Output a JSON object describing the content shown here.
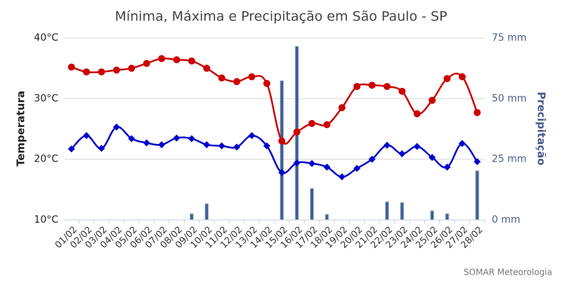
{
  "chart_data": {
    "type": "combo",
    "title": "Mínima, Máxima e Precipitação em São Paulo - SP",
    "y_label": "Temperatura",
    "y2_label": "Precipitação",
    "credit": "SOMAR Meteorologia",
    "categories": [
      "01/02",
      "02/02",
      "03/02",
      "04/02",
      "05/02",
      "06/02",
      "07/02",
      "08/02",
      "09/02",
      "10/02",
      "11/02",
      "12/02",
      "13/02",
      "14/02",
      "15/02",
      "16/02",
      "17/02",
      "18/02",
      "19/02",
      "20/02",
      "21/02",
      "22/02",
      "23/02",
      "24/02",
      "25/02",
      "26/02",
      "27/02",
      "28/02"
    ],
    "ylim": [
      10,
      40
    ],
    "yticks": [
      {
        "value": 10,
        "label": "10°C"
      },
      {
        "value": 20,
        "label": "20°C"
      },
      {
        "value": 30,
        "label": "30°C"
      },
      {
        "value": 40,
        "label": "40°C"
      }
    ],
    "y2lim": [
      0,
      75
    ],
    "y2ticks": [
      {
        "value": 0,
        "label": "0 mm"
      },
      {
        "value": 25,
        "label": "25 mm"
      },
      {
        "value": 50,
        "label": "50 mm"
      },
      {
        "value": 75,
        "label": "75 mm"
      }
    ],
    "grid": true,
    "series": [
      {
        "name": "Precipitação",
        "kind": "bar",
        "axis": "y2",
        "color": "#3d5f96",
        "values": [
          0,
          0,
          0,
          0,
          0,
          0,
          0,
          0,
          2.6,
          6.7,
          0,
          0,
          0,
          0,
          57.4,
          71.6,
          13.0,
          2.3,
          0,
          0,
          0,
          7.5,
          7.2,
          0,
          3.8,
          2.6,
          0,
          20.3
        ]
      },
      {
        "name": "Máxima",
        "kind": "line",
        "marker": "circle",
        "color": "#cc0000",
        "values": [
          35.2,
          34.4,
          34.4,
          34.7,
          35.0,
          35.8,
          36.6,
          36.4,
          36.2,
          35.0,
          33.4,
          32.8,
          33.6,
          32.5,
          23.0,
          24.5,
          25.9,
          25.7,
          28.5,
          32.0,
          32.2,
          32.0,
          31.2,
          27.5,
          29.7,
          33.3,
          33.6,
          27.7
        ]
      },
      {
        "name": "Mínima",
        "kind": "line",
        "marker": "diamond",
        "color": "#0000cc",
        "values": [
          21.7,
          23.9,
          21.8,
          25.3,
          23.4,
          22.7,
          22.4,
          23.5,
          23.4,
          22.4,
          22.2,
          22.0,
          23.9,
          22.2,
          17.8,
          19.4,
          19.3,
          18.7,
          17.1,
          18.5,
          20.0,
          22.3,
          20.9,
          22.1,
          20.3,
          18.7,
          22.6,
          19.6
        ]
      }
    ]
  }
}
